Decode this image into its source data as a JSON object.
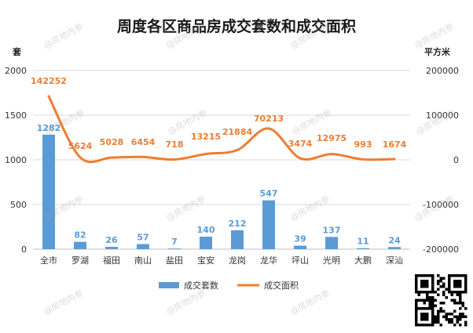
{
  "chart_data": {
    "type": "bar",
    "title": "周度各区商品房成交套数和成交面积",
    "left_axis_unit": "套",
    "right_axis_unit": "平方米",
    "categories": [
      "全市",
      "罗湖",
      "福田",
      "南山",
      "盐田",
      "宝安",
      "龙岗",
      "龙华",
      "坪山",
      "光明",
      "大鹏",
      "深汕"
    ],
    "y_left_lim": [
      0,
      2000
    ],
    "y_left_ticks": [
      0,
      500,
      1000,
      1500,
      2000
    ],
    "y_right_lim": [
      -200000,
      200000
    ],
    "y_right_ticks": [
      -200000,
      -100000,
      0,
      100000,
      200000
    ],
    "grid": true,
    "legend_position": "bottom",
    "series": [
      {
        "name": "成交套数",
        "type": "bar",
        "axis": "left",
        "color": "#5b9bd5",
        "values": [
          1282,
          82,
          26,
          57,
          7,
          140,
          212,
          547,
          39,
          137,
          11,
          24
        ]
      },
      {
        "name": "成交面积",
        "type": "line",
        "axis": "right",
        "color": "#ed7d31",
        "values": [
          142252,
          5624,
          5028,
          6454,
          718,
          13215,
          21884,
          70213,
          3474,
          12975,
          993,
          1674
        ]
      }
    ],
    "watermark": "@房地内参"
  }
}
